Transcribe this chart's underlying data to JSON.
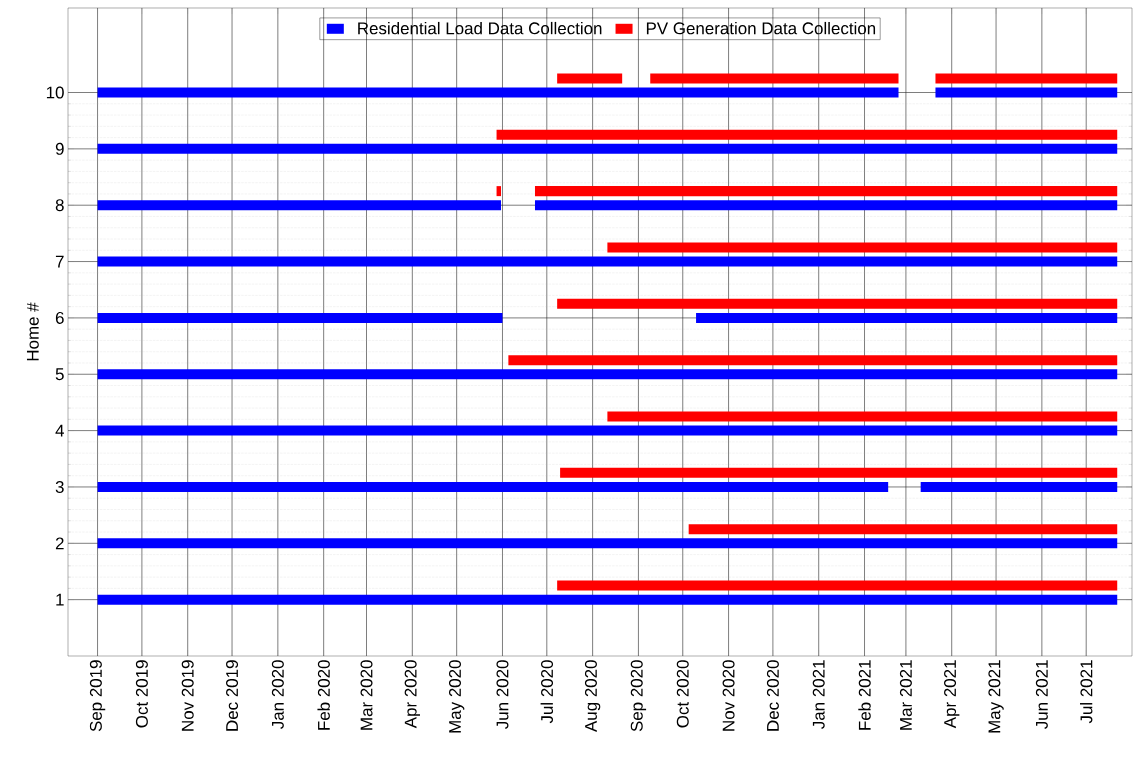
{
  "chart_data": {
    "type": "line",
    "ylabel": "Home #",
    "xlim": [
      "2019-08-12",
      "2021-08-01"
    ],
    "ylim": [
      0,
      11.5
    ],
    "xticks": [
      {
        "value": "2019-09-01",
        "label": "Sep 2019"
      },
      {
        "value": "2019-10-01",
        "label": "Oct 2019"
      },
      {
        "value": "2019-11-01",
        "label": "Nov 2019"
      },
      {
        "value": "2019-12-01",
        "label": "Dec 2019"
      },
      {
        "value": "2020-01-01",
        "label": "Jan 2020"
      },
      {
        "value": "2020-02-01",
        "label": "Feb 2020"
      },
      {
        "value": "2020-03-01",
        "label": "Mar 2020"
      },
      {
        "value": "2020-04-01",
        "label": "Apr 2020"
      },
      {
        "value": "2020-05-01",
        "label": "May 2020"
      },
      {
        "value": "2020-06-01",
        "label": "Jun 2020"
      },
      {
        "value": "2020-07-01",
        "label": "Jul 2020"
      },
      {
        "value": "2020-08-01",
        "label": "Aug 2020"
      },
      {
        "value": "2020-09-01",
        "label": "Sep 2020"
      },
      {
        "value": "2020-10-01",
        "label": "Oct 2020"
      },
      {
        "value": "2020-11-01",
        "label": "Nov 2020"
      },
      {
        "value": "2020-12-01",
        "label": "Dec 2020"
      },
      {
        "value": "2021-01-01",
        "label": "Jan 2021"
      },
      {
        "value": "2021-02-01",
        "label": "Feb 2021"
      },
      {
        "value": "2021-03-01",
        "label": "Mar 2021"
      },
      {
        "value": "2021-04-01",
        "label": "Apr 2021"
      },
      {
        "value": "2021-05-01",
        "label": "May 2021"
      },
      {
        "value": "2021-06-01",
        "label": "Jun 2021"
      },
      {
        "value": "2021-07-01",
        "label": "Jul 2021"
      }
    ],
    "yticks": [
      1,
      2,
      3,
      4,
      5,
      6,
      7,
      8,
      9,
      10
    ],
    "grid": true,
    "legend": "top",
    "marker": "none",
    "line_style": "solid",
    "series": [
      {
        "name": "Residential Load Data Collection",
        "color": "#0000ff",
        "x": [
          "2019-09-01",
          "2021-07-22"
        ],
        "values": [
          1,
          1
        ]
      },
      {
        "name": "PV Generation Data Collection",
        "color": "#ff0000",
        "x": [
          "2020-07-08",
          "2021-07-22"
        ],
        "values": [
          1.25,
          1.25
        ]
      },
      {
        "color": "#0000ff",
        "x": [
          "2019-09-01",
          "2021-07-22"
        ],
        "values": [
          2,
          2
        ]
      },
      {
        "color": "#0000ff",
        "x": [
          "2019-09-01",
          "2021-02-17"
        ],
        "values": [
          3,
          3
        ]
      },
      {
        "color": "#0000ff",
        "x": [
          "2021-03-11",
          "2021-07-22"
        ],
        "values": [
          3,
          3
        ]
      },
      {
        "color": "#0000ff",
        "x": [
          "2019-09-01",
          "2021-07-22"
        ],
        "values": [
          4,
          4
        ]
      },
      {
        "color": "#0000ff",
        "x": [
          "2019-09-01",
          "2021-07-22"
        ],
        "values": [
          5,
          5
        ]
      },
      {
        "color": "#0000ff",
        "x": [
          "2019-09-01",
          "2020-06-01"
        ],
        "values": [
          6,
          6
        ]
      },
      {
        "color": "#0000ff",
        "x": [
          "2020-10-10",
          "2021-07-22"
        ],
        "values": [
          6,
          6
        ]
      },
      {
        "color": "#0000ff",
        "x": [
          "2019-09-01",
          "2021-07-22"
        ],
        "values": [
          7,
          7
        ]
      },
      {
        "color": "#0000ff",
        "x": [
          "2019-09-01",
          "2020-05-31"
        ],
        "values": [
          8,
          8
        ]
      },
      {
        "color": "#0000ff",
        "x": [
          "2020-06-23",
          "2021-07-22"
        ],
        "values": [
          8,
          8
        ]
      },
      {
        "color": "#0000ff",
        "x": [
          "2019-09-01",
          "2021-07-22"
        ],
        "values": [
          9,
          9
        ]
      },
      {
        "color": "#0000ff",
        "x": [
          "2019-09-01",
          "2021-02-24"
        ],
        "values": [
          10,
          10
        ]
      },
      {
        "color": "#0000ff",
        "x": [
          "2021-03-21",
          "2021-07-22"
        ],
        "values": [
          10,
          10
        ]
      },
      {
        "color": "#ff0000",
        "x": [
          "2020-10-05",
          "2021-07-22"
        ],
        "values": [
          2.25,
          2.25
        ]
      },
      {
        "color": "#ff0000",
        "x": [
          "2020-07-10",
          "2021-07-22"
        ],
        "values": [
          3.25,
          3.25
        ]
      },
      {
        "color": "#ff0000",
        "x": [
          "2020-08-11",
          "2021-07-22"
        ],
        "values": [
          4.25,
          4.25
        ]
      },
      {
        "color": "#ff0000",
        "x": [
          "2020-06-05",
          "2021-07-22"
        ],
        "values": [
          5.25,
          5.25
        ]
      },
      {
        "color": "#ff0000",
        "x": [
          "2020-07-08",
          "2021-07-22"
        ],
        "values": [
          6.25,
          6.25
        ]
      },
      {
        "color": "#ff0000",
        "x": [
          "2020-08-11",
          "2021-07-22"
        ],
        "values": [
          7.25,
          7.25
        ]
      },
      {
        "color": "#ff0000",
        "x": [
          "2020-05-28",
          "2020-05-31"
        ],
        "values": [
          8.25,
          8.25
        ]
      },
      {
        "color": "#ff0000",
        "x": [
          "2020-06-23",
          "2021-07-22"
        ],
        "values": [
          8.25,
          8.25
        ]
      },
      {
        "color": "#ff0000",
        "x": [
          "2020-05-28",
          "2021-07-22"
        ],
        "values": [
          9.25,
          9.25
        ]
      },
      {
        "color": "#ff0000",
        "x": [
          "2020-07-08",
          "2020-08-21"
        ],
        "values": [
          10.25,
          10.25
        ]
      },
      {
        "color": "#ff0000",
        "x": [
          "2020-09-09",
          "2021-02-24"
        ],
        "values": [
          10.25,
          10.25
        ]
      },
      {
        "color": "#ff0000",
        "x": [
          "2021-03-21",
          "2021-07-22"
        ],
        "values": [
          10.25,
          10.25
        ]
      }
    ]
  }
}
